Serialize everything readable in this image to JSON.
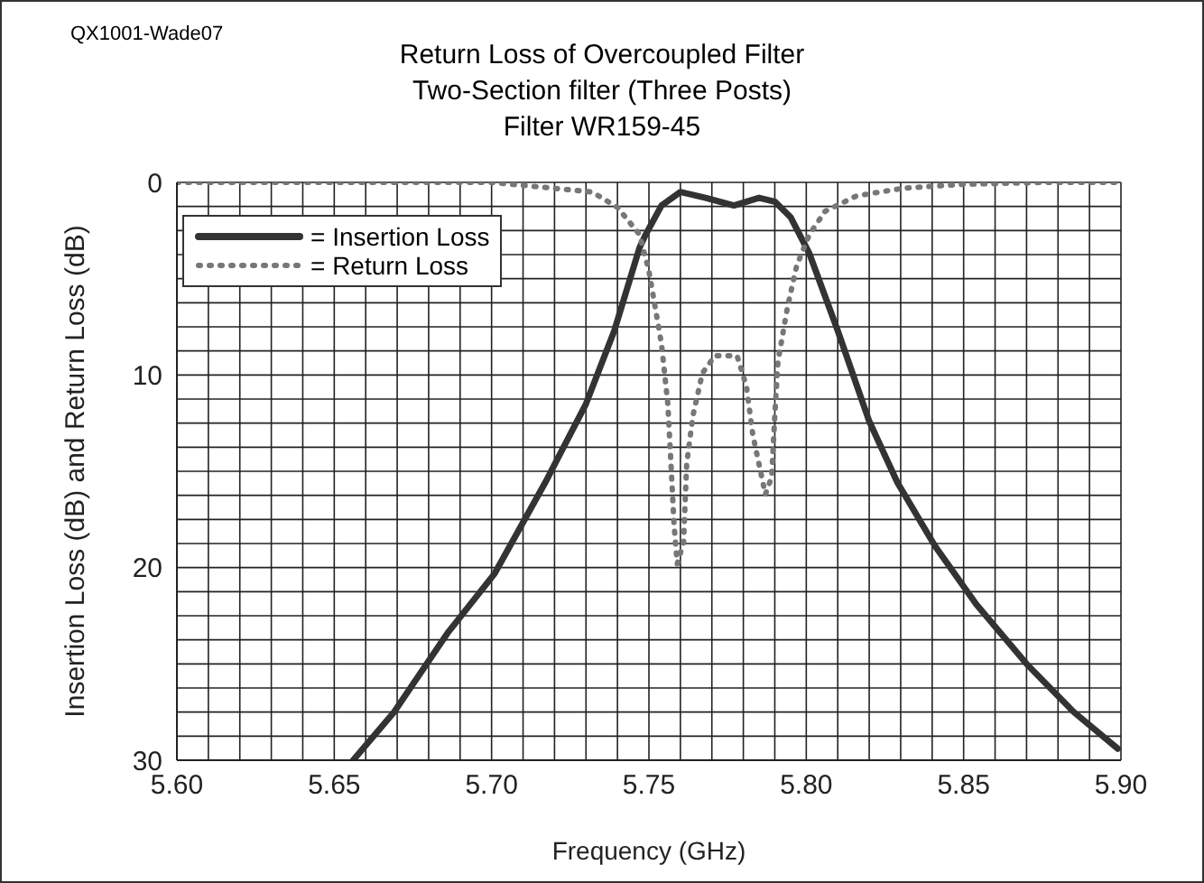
{
  "chart_data": {
    "type": "line",
    "title": "Return Loss of Overcoupled Filter",
    "subtitle": "Two-Section filter (Three Posts)\nFilter WR159-45",
    "annotations": [
      "QX1001-Wade07"
    ],
    "xlabel": "Frequency (GHz)",
    "ylabel": "Insertion Loss (dB) and Return Loss (dB)",
    "xlim": [
      5.6,
      5.9
    ],
    "ylim": [
      30,
      0
    ],
    "xticks": [
      {
        "value": 5.6,
        "label": "5.60"
      },
      {
        "value": 5.61,
        "label": null
      },
      {
        "value": 5.62,
        "label": null
      },
      {
        "value": 5.63,
        "label": null
      },
      {
        "value": 5.64,
        "label": null
      },
      {
        "value": 5.65,
        "label": "5.65"
      },
      {
        "value": 5.66,
        "label": null
      },
      {
        "value": 5.67,
        "label": null
      },
      {
        "value": 5.68,
        "label": null
      },
      {
        "value": 5.69,
        "label": null
      },
      {
        "value": 5.7,
        "label": "5.70"
      },
      {
        "value": 5.71,
        "label": null
      },
      {
        "value": 5.72,
        "label": null
      },
      {
        "value": 5.73,
        "label": null
      },
      {
        "value": 5.74,
        "label": null
      },
      {
        "value": 5.75,
        "label": "5.75"
      },
      {
        "value": 5.76,
        "label": null
      },
      {
        "value": 5.77,
        "label": null
      },
      {
        "value": 5.78,
        "label": null
      },
      {
        "value": 5.79,
        "label": null
      },
      {
        "value": 5.8,
        "label": "5.80"
      },
      {
        "value": 5.81,
        "label": null
      },
      {
        "value": 5.82,
        "label": null
      },
      {
        "value": 5.83,
        "label": null
      },
      {
        "value": 5.84,
        "label": null
      },
      {
        "value": 5.85,
        "label": "5.85"
      },
      {
        "value": 5.86,
        "label": null
      },
      {
        "value": 5.87,
        "label": null
      },
      {
        "value": 5.88,
        "label": null
      },
      {
        "value": 5.89,
        "label": null
      },
      {
        "value": 5.9,
        "label": "5.90"
      }
    ],
    "yticks": [
      0,
      {
        "value": 1.25,
        "label": null
      },
      {
        "value": 2.5,
        "label": null
      },
      {
        "value": 3.75,
        "label": null
      },
      {
        "value": 5,
        "label": null
      },
      {
        "value": 6.25,
        "label": null
      },
      {
        "value": 7.5,
        "label": null
      },
      {
        "value": 8.75,
        "label": null
      },
      10,
      {
        "value": 11.25,
        "label": null
      },
      {
        "value": 12.5,
        "label": null
      },
      {
        "value": 13.75,
        "label": null
      },
      {
        "value": 15,
        "label": null
      },
      {
        "value": 16.25,
        "label": null
      },
      {
        "value": 17.5,
        "label": null
      },
      {
        "value": 18.75,
        "label": null
      },
      20,
      {
        "value": 21.25,
        "label": null
      },
      {
        "value": 22.5,
        "label": null
      },
      {
        "value": 23.75,
        "label": null
      },
      {
        "value": 25,
        "label": null
      },
      {
        "value": 26.25,
        "label": null
      },
      {
        "value": 27.5,
        "label": null
      },
      {
        "value": 28.75,
        "label": null
      },
      30
    ],
    "grid": true,
    "legend": "top left",
    "marker": "none",
    "series": [
      {
        "name": "= Insertion Loss",
        "color": "#333333",
        "line_style": "solid",
        "x": [
          5.656,
          5.669,
          5.686,
          5.701,
          5.717,
          5.73,
          5.739,
          5.747,
          5.749,
          5.754,
          5.76,
          5.768,
          5.777,
          5.785,
          5.79,
          5.795,
          5.801,
          5.81,
          5.82,
          5.829,
          5.841,
          5.854,
          5.87,
          5.885,
          5.899
        ],
        "values": [
          30,
          27.5,
          23.4,
          20.3,
          15.6,
          11.5,
          7.7,
          3.4,
          2.7,
          1.2,
          0.5,
          0.8,
          1.2,
          0.8,
          1.0,
          1.8,
          3.7,
          7.7,
          12.4,
          15.6,
          18.9,
          21.9,
          25,
          27.5,
          29.4
        ]
      },
      {
        "name": "= Return Loss",
        "color": "#777777",
        "line_style": "dotted",
        "x": [
          5.6,
          5.65,
          5.7,
          5.713,
          5.732,
          5.74,
          5.747,
          5.75,
          5.752,
          5.754,
          5.756,
          5.757,
          5.758,
          5.759,
          5.761,
          5.762,
          5.764,
          5.767,
          5.771,
          5.778,
          5.781,
          5.783,
          5.787,
          5.789,
          5.79,
          5.791,
          5.794,
          5.797,
          5.801,
          5.806,
          5.816,
          5.831,
          5.85,
          5.875,
          5.9
        ],
        "values": [
          0,
          0,
          0,
          0.2,
          0.5,
          1.3,
          2.7,
          4.6,
          6.5,
          8.4,
          11.5,
          14.6,
          17.8,
          19.8,
          18.7,
          14.6,
          12.1,
          9.9,
          9.0,
          9.0,
          10.6,
          13.1,
          16.2,
          15.3,
          12.1,
          9.3,
          6.5,
          4.3,
          2.7,
          1.5,
          0.7,
          0.3,
          0.1,
          0,
          0
        ]
      }
    ]
  }
}
